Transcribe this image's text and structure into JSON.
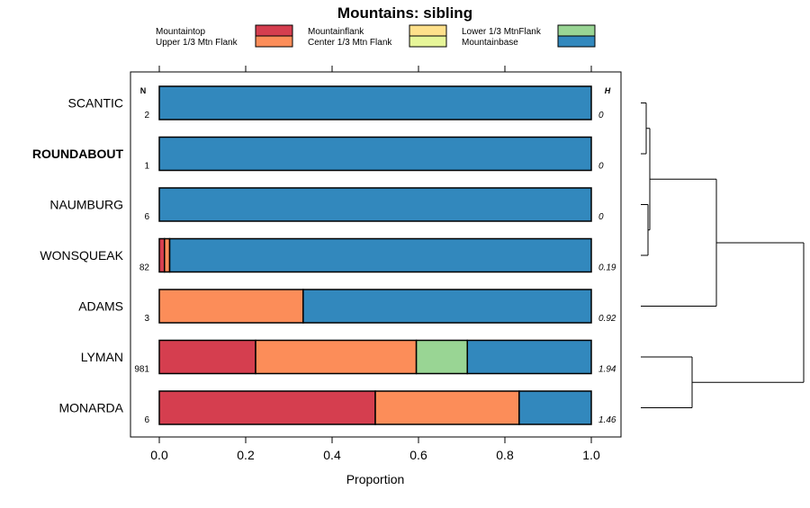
{
  "chart_data": {
    "type": "bar",
    "orientation": "horizontal",
    "stacked": true,
    "title": "Mountains: sibling",
    "xlabel": "Proportion",
    "xlim": [
      0,
      1
    ],
    "xticks": [
      "0.0",
      "0.2",
      "0.4",
      "0.6",
      "0.8",
      "1.0"
    ],
    "n_header": "N",
    "h_header": "H",
    "categories_legend": [
      {
        "name": "Mountaintop",
        "color": "#d53e4f"
      },
      {
        "name": "Upper 1/3 Mtn Flank",
        "color": "#fc8d59"
      },
      {
        "name": "Mountainflank",
        "color": "#fee08b"
      },
      {
        "name": "Center 1/3 Mtn Flank",
        "color": "#e6f598"
      },
      {
        "name": "Lower 1/3 MtnFlank",
        "color": "#99d594"
      },
      {
        "name": "Mountainbase",
        "color": "#3288bd"
      }
    ],
    "rows": [
      {
        "label": "SCANTIC",
        "bold": false,
        "n": "2",
        "h": "0",
        "values": [
          0,
          0,
          0,
          0,
          0,
          1.0
        ]
      },
      {
        "label": "ROUNDABOUT",
        "bold": true,
        "n": "1",
        "h": "0",
        "values": [
          0,
          0,
          0,
          0,
          0,
          1.0
        ]
      },
      {
        "label": "NAUMBURG",
        "bold": false,
        "n": "6",
        "h": "0",
        "values": [
          0,
          0,
          0,
          0,
          0,
          1.0
        ]
      },
      {
        "label": "WONSQUEAK",
        "bold": false,
        "n": "82",
        "h": "0.19",
        "values": [
          0.012,
          0.012,
          0,
          0,
          0,
          0.976
        ]
      },
      {
        "label": "ADAMS",
        "bold": false,
        "n": "3",
        "h": "0.92",
        "values": [
          0,
          0.333,
          0,
          0,
          0,
          0.667
        ]
      },
      {
        "label": "LYMAN",
        "bold": false,
        "n": "981",
        "h": "1.94",
        "values": [
          0.223,
          0.372,
          0,
          0,
          0.118,
          0.287
        ]
      },
      {
        "label": "MONARDA",
        "bold": false,
        "n": "6",
        "h": "1.46",
        "values": [
          0.5,
          0.333,
          0,
          0,
          0,
          0.167
        ]
      }
    ],
    "dendrogram": {
      "type": "hierarchical-clustering",
      "merges": [
        [
          1,
          2
        ],
        [
          3,
          4
        ],
        [
          -1,
          -2
        ],
        [
          6,
          7
        ],
        [
          5,
          8
        ],
        [
          -3,
          -4
        ],
        [
          9,
          10
        ]
      ]
    }
  }
}
